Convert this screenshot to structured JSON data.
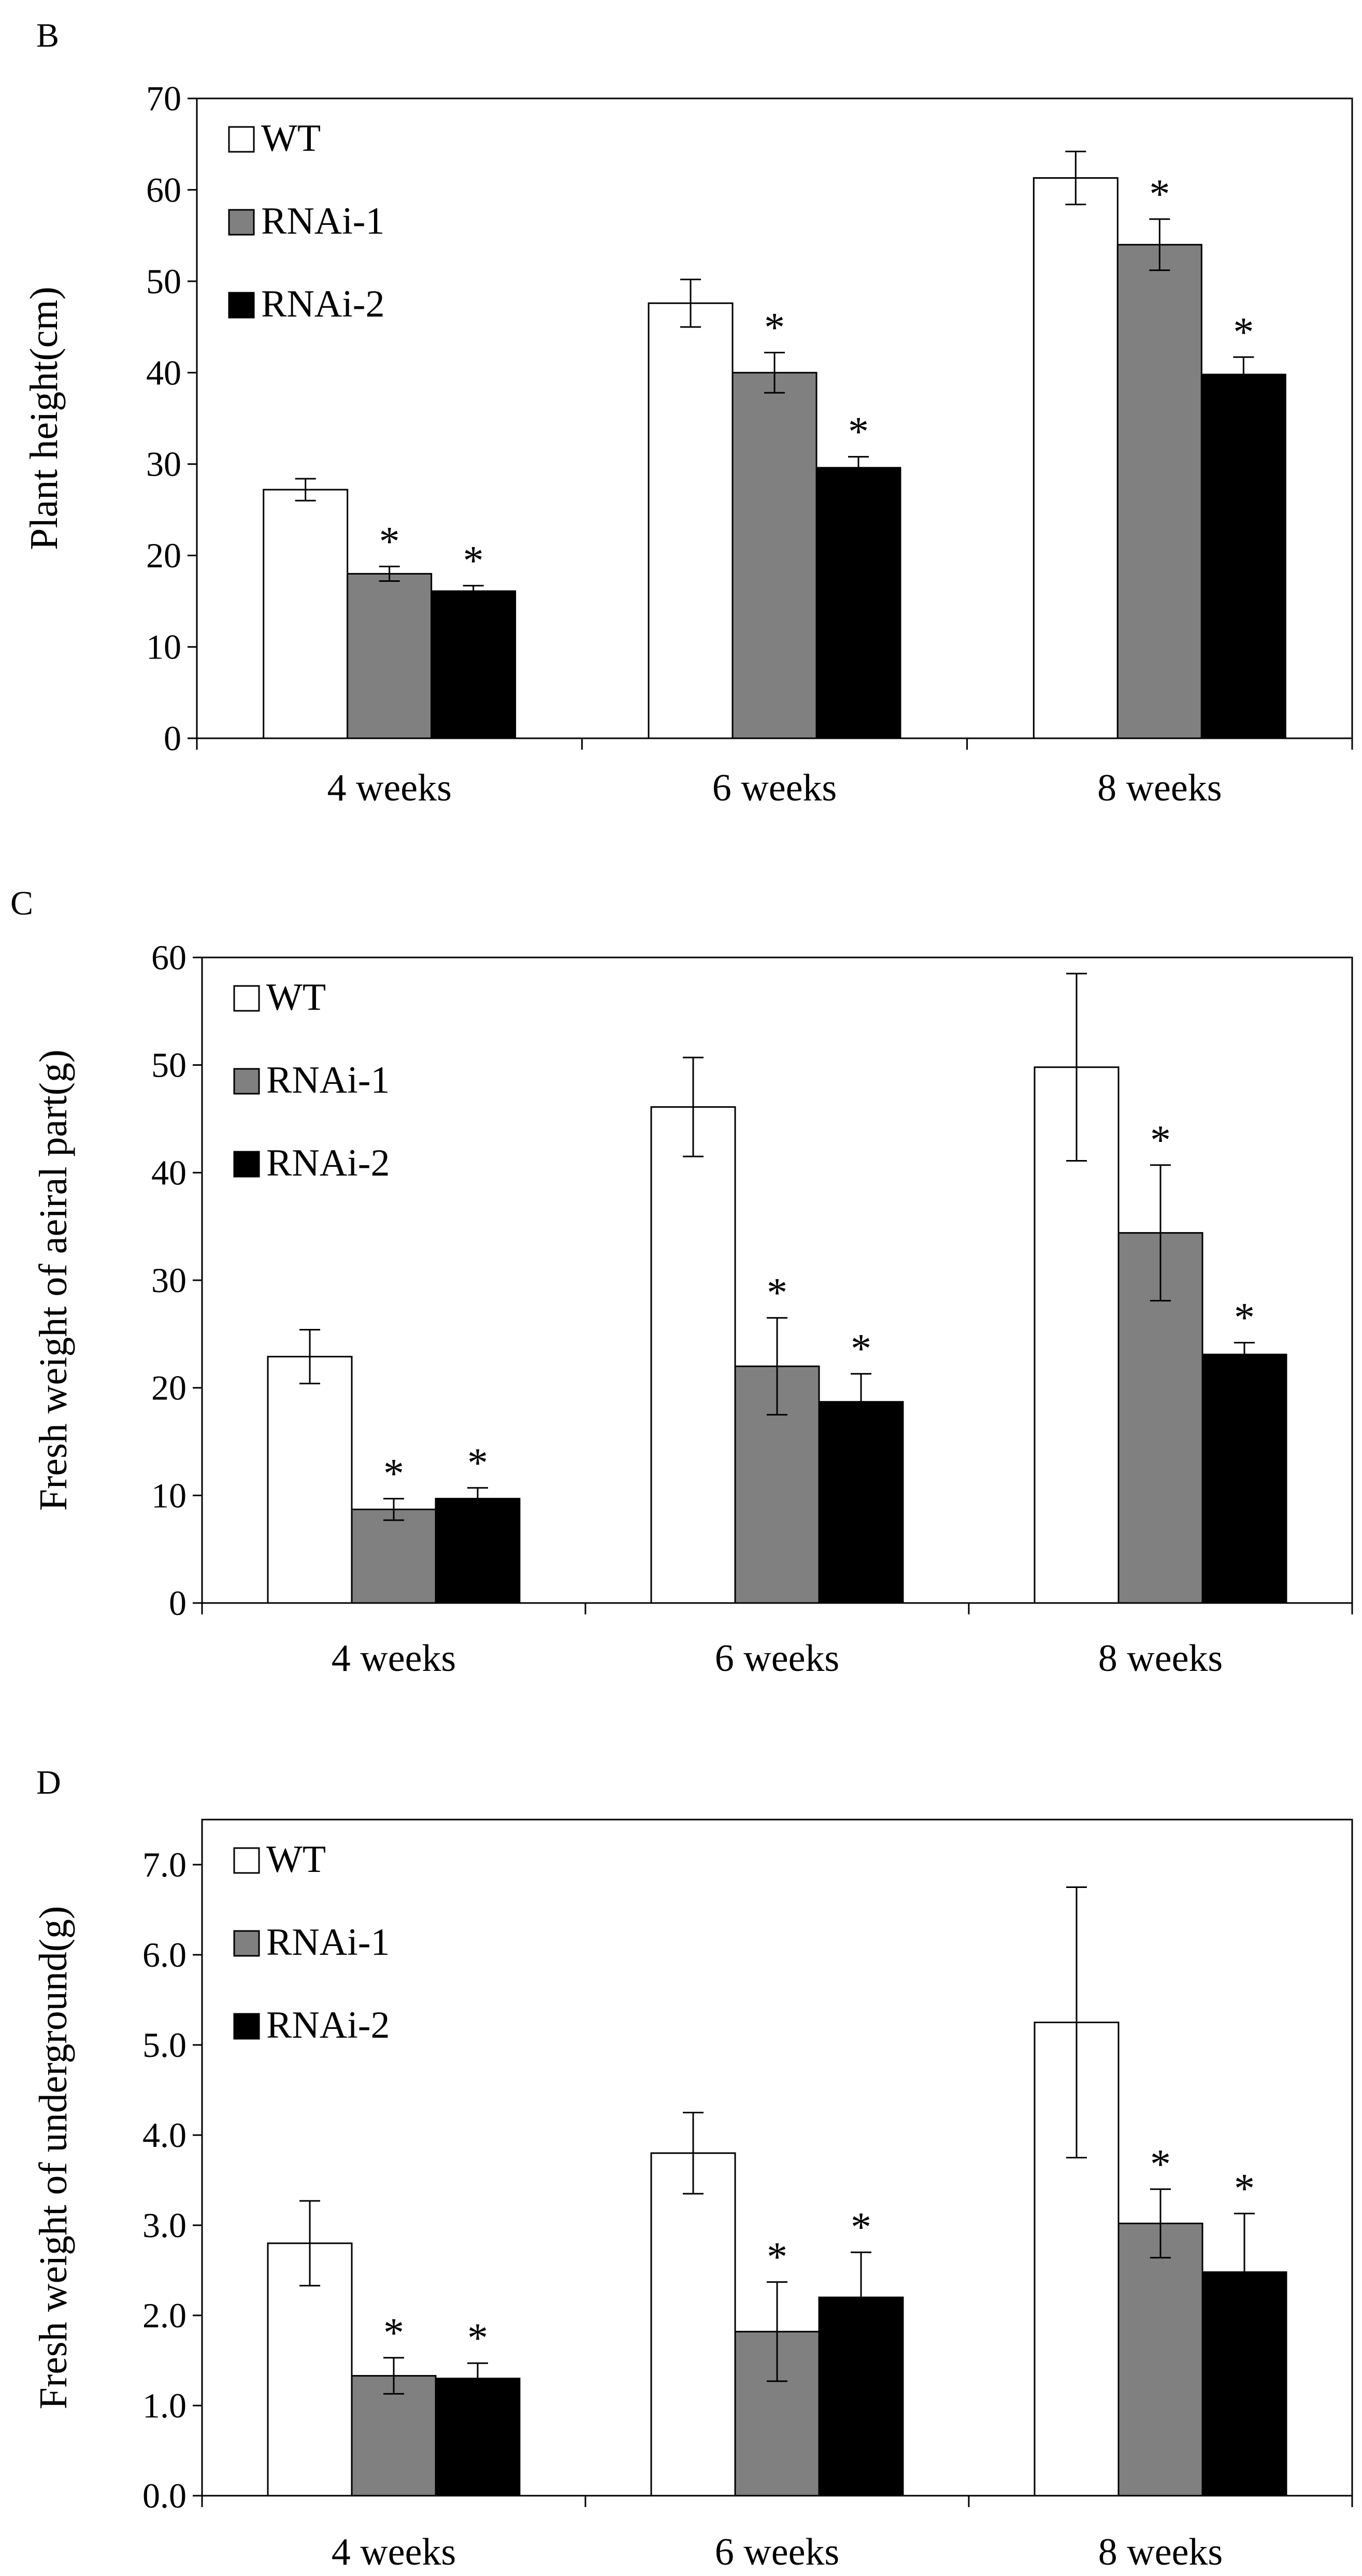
{
  "chart_data": [
    {
      "panel": "B",
      "type": "bar",
      "ylabel": "Plant height(cm)",
      "xlabel": "",
      "ylim": [
        0,
        70
      ],
      "ytick_step": 10,
      "ytick_decimals": 0,
      "categories": [
        "4 weeks",
        "6 weeks",
        "8 weeks"
      ],
      "legend": "top-left",
      "series": [
        {
          "name": "WT",
          "color": "#ffffff",
          "values": [
            27.2,
            47.6,
            61.3
          ],
          "errors": [
            1.2,
            2.6,
            2.9
          ],
          "significant": [
            false,
            false,
            false
          ]
        },
        {
          "name": "RNAi-1",
          "color": "#808080",
          "values": [
            18.0,
            40.0,
            54.0
          ],
          "errors": [
            0.8,
            2.2,
            2.8
          ],
          "significant": [
            true,
            true,
            true
          ]
        },
        {
          "name": "RNAi-2",
          "color": "#000000",
          "values": [
            16.1,
            29.6,
            39.8
          ],
          "errors": [
            0.6,
            1.2,
            1.9
          ],
          "significant": [
            true,
            true,
            true
          ]
        }
      ],
      "significance_marker": "*"
    },
    {
      "panel": "C",
      "type": "bar",
      "ylabel": "Fresh weight of aeiral part(g)",
      "xlabel": "",
      "ylim": [
        0,
        60
      ],
      "ytick_step": 10,
      "ytick_decimals": 0,
      "categories": [
        "4 weeks",
        "6 weeks",
        "8 weeks"
      ],
      "legend": "top-left",
      "series": [
        {
          "name": "WT",
          "color": "#ffffff",
          "values": [
            22.9,
            46.1,
            49.8
          ],
          "errors": [
            2.5,
            4.6,
            8.7
          ],
          "significant": [
            false,
            false,
            false
          ]
        },
        {
          "name": "RNAi-1",
          "color": "#808080",
          "values": [
            8.7,
            22.0,
            34.4
          ],
          "errors": [
            1.0,
            4.5,
            6.3
          ],
          "significant": [
            true,
            true,
            true
          ]
        },
        {
          "name": "RNAi-2",
          "color": "#000000",
          "values": [
            9.7,
            18.7,
            23.1
          ],
          "errors": [
            1.0,
            2.6,
            1.1
          ],
          "significant": [
            true,
            true,
            true
          ]
        }
      ],
      "significance_marker": "*"
    },
    {
      "panel": "D",
      "type": "bar",
      "ylabel": "Fresh weight of underground(g)",
      "xlabel": "",
      "ylim": [
        0,
        7.5
      ],
      "ytick_step": 1,
      "ytick_decimals": 1,
      "categories": [
        "4 weeks",
        "6 weeks",
        "8 weeks"
      ],
      "legend": "top-left",
      "series": [
        {
          "name": "WT",
          "color": "#ffffff",
          "values": [
            2.8,
            3.8,
            5.25
          ],
          "errors": [
            0.47,
            0.45,
            1.5
          ],
          "significant": [
            false,
            false,
            false
          ]
        },
        {
          "name": "RNAi-1",
          "color": "#808080",
          "values": [
            1.33,
            1.82,
            3.02
          ],
          "errors": [
            0.2,
            0.55,
            0.38
          ],
          "significant": [
            true,
            true,
            true
          ]
        },
        {
          "name": "RNAi-2",
          "color": "#000000",
          "values": [
            1.3,
            2.2,
            2.48
          ],
          "errors": [
            0.17,
            0.5,
            0.65
          ],
          "significant": [
            true,
            true,
            true
          ]
        }
      ],
      "significance_marker": "*"
    }
  ]
}
